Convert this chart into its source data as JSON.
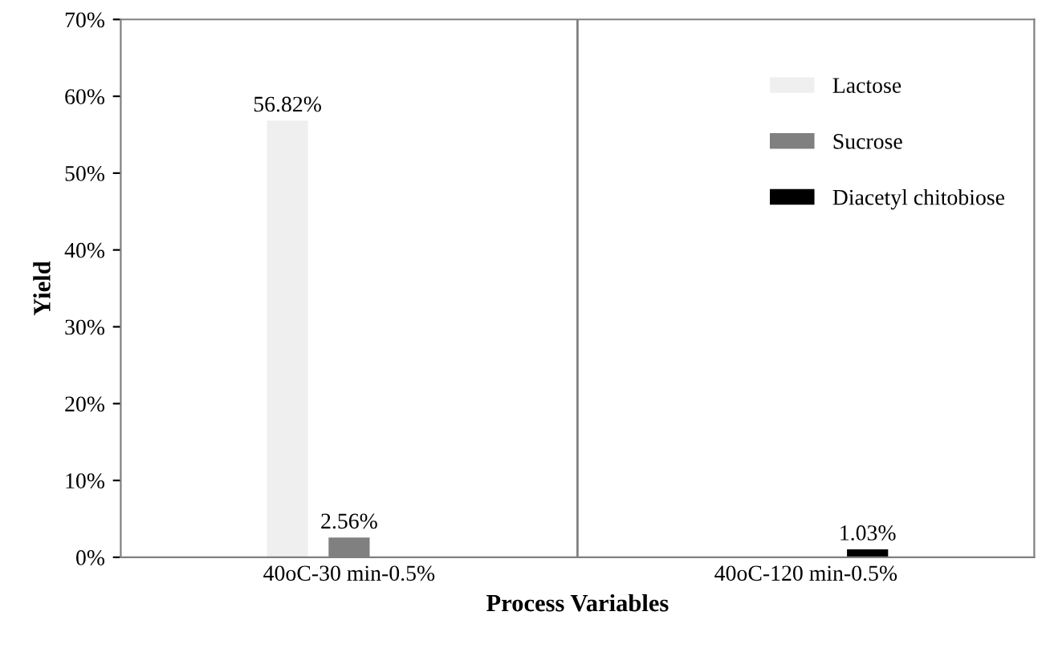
{
  "chart_data": {
    "type": "bar",
    "xlabel": "Process Variables",
    "ylabel": "Yield",
    "categories": [
      "40oC-30 min-0.5%",
      "40oC-120 min-0.5%"
    ],
    "series": [
      {
        "name": "Lactose",
        "color": "#efefef",
        "values": [
          56.82,
          null
        ],
        "value_labels": [
          "56.82%",
          null
        ]
      },
      {
        "name": "Sucrose",
        "color": "#808080",
        "values": [
          2.56,
          null
        ],
        "value_labels": [
          "2.56%",
          null
        ]
      },
      {
        "name": "Diacetyl chitobiose",
        "color": "#000000",
        "values": [
          null,
          1.03
        ],
        "value_labels": [
          null,
          "1.03%"
        ]
      }
    ],
    "ylim": [
      0,
      70
    ],
    "yticks": [
      {
        "value": 0,
        "label": "0%"
      },
      {
        "value": 10,
        "label": "10%"
      },
      {
        "value": 20,
        "label": "20%"
      },
      {
        "value": 30,
        "label": "30%"
      },
      {
        "value": 40,
        "label": "40%"
      },
      {
        "value": 50,
        "label": "50%"
      },
      {
        "value": 60,
        "label": "60%"
      },
      {
        "value": 70,
        "label": "70%"
      }
    ],
    "grid": "x",
    "legend": "top right"
  }
}
